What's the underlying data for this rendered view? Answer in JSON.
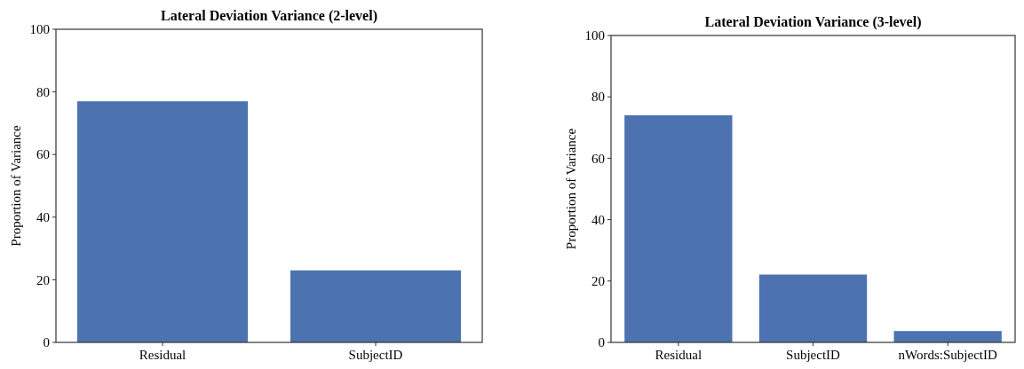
{
  "chart_data": [
    {
      "type": "bar",
      "title": "Lateral Deviation Variance (2-level)",
      "ylabel": "Proportion of Variance",
      "categories": [
        "Residual",
        "SubjectID"
      ],
      "values": [
        77,
        23
      ],
      "color": "#4c72b0",
      "ylim": [
        0,
        100
      ],
      "yticks": [
        0,
        20,
        40,
        60,
        80,
        100
      ],
      "grid": false
    },
    {
      "type": "bar",
      "title": "Lateral Deviation Variance (3-level)",
      "ylabel": "Proportion of Variance",
      "categories": [
        "Residual",
        "SubjectID",
        "nWords:SubjectID"
      ],
      "values": [
        74,
        22.1,
        3.7
      ],
      "color": "#4c72b0",
      "ylim": [
        0,
        100
      ],
      "yticks": [
        0,
        20,
        40,
        60,
        80,
        100
      ],
      "grid": false
    }
  ]
}
